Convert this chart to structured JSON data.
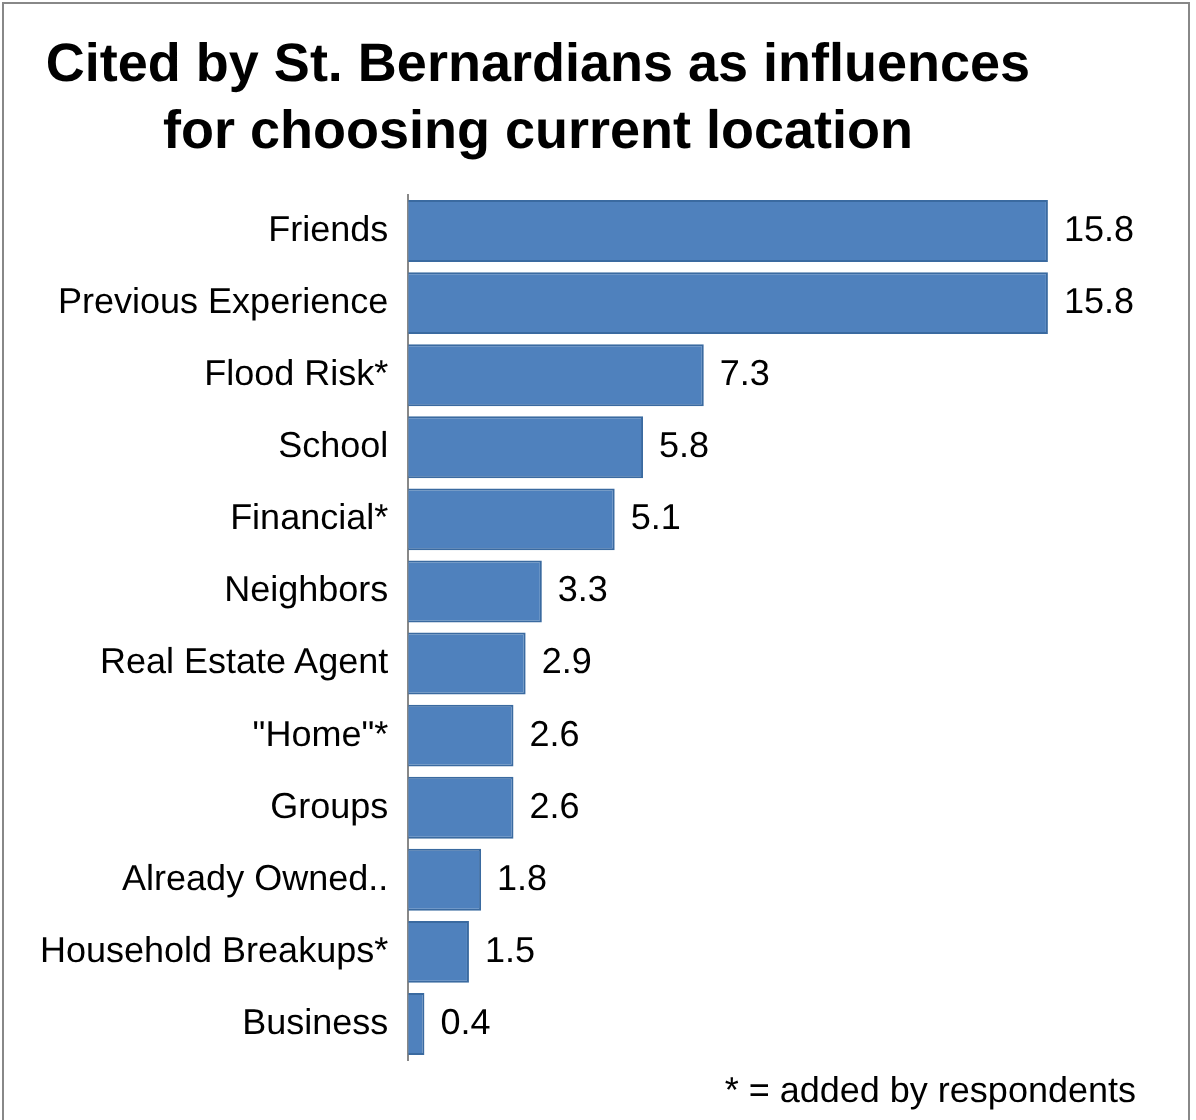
{
  "chart_data": {
    "type": "bar",
    "orientation": "horizontal",
    "title": "Cited by St. Bernardians as influences\nfor choosing current location",
    "categories": [
      "Friends",
      "Previous Experience",
      "Flood Risk*",
      "School",
      "Financial*",
      "Neighbors",
      "Real Estate Agent",
      "\"Home\"*",
      "Groups",
      "Already Owned..",
      "Household Breakups*",
      "Business"
    ],
    "values": [
      15.8,
      15.8,
      7.3,
      5.8,
      5.1,
      3.3,
      2.9,
      2.6,
      2.6,
      1.8,
      1.5,
      0.4
    ],
    "color": "#4f81bd",
    "data_labels": true,
    "grid": false,
    "legend": false,
    "tick_labels": "y",
    "annotations": [
      "* = added by respondents"
    ]
  }
}
